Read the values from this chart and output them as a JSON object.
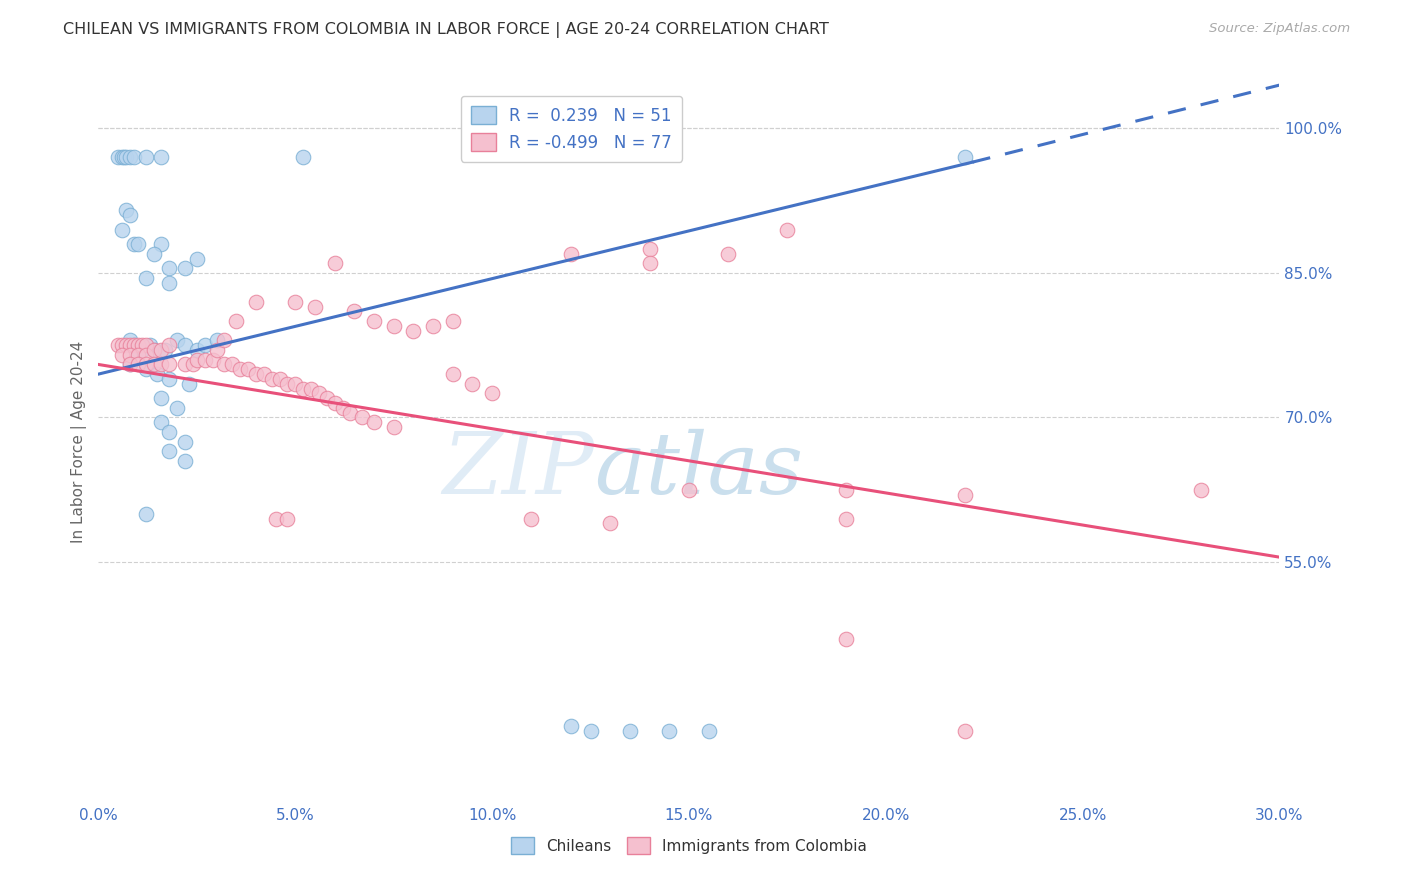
{
  "title": "CHILEAN VS IMMIGRANTS FROM COLOMBIA IN LABOR FORCE | AGE 20-24 CORRELATION CHART",
  "source": "Source: ZipAtlas.com",
  "ylabel": "In Labor Force | Age 20-24",
  "xlim": [
    0.0,
    0.3
  ],
  "ylim": [
    0.3,
    1.05
  ],
  "yticks": [
    0.55,
    0.7,
    0.85,
    1.0
  ],
  "xticks": [
    0.0,
    0.05,
    0.1,
    0.15,
    0.2,
    0.25,
    0.3
  ],
  "blue_R": 0.239,
  "blue_N": 51,
  "pink_R": -0.499,
  "pink_N": 77,
  "blue_label": "Chileans",
  "pink_label": "Immigrants from Colombia",
  "background_color": "#ffffff",
  "watermark_zip": "ZIP",
  "watermark_atlas": "atlas",
  "blue_line_solid": [
    [
      0.0,
      0.745
    ],
    [
      0.222,
      0.965
    ]
  ],
  "blue_line_dashed": [
    [
      0.222,
      0.965
    ],
    [
      0.3,
      1.045
    ]
  ],
  "pink_line": [
    [
      0.0,
      0.755
    ],
    [
      0.3,
      0.555
    ]
  ],
  "blue_points": [
    [
      0.005,
      0.97
    ],
    [
      0.006,
      0.97
    ],
    [
      0.0065,
      0.97
    ],
    [
      0.007,
      0.97
    ],
    [
      0.008,
      0.97
    ],
    [
      0.009,
      0.97
    ],
    [
      0.012,
      0.97
    ],
    [
      0.016,
      0.97
    ],
    [
      0.052,
      0.97
    ],
    [
      0.007,
      0.915
    ],
    [
      0.008,
      0.91
    ],
    [
      0.006,
      0.895
    ],
    [
      0.009,
      0.88
    ],
    [
      0.01,
      0.88
    ],
    [
      0.016,
      0.88
    ],
    [
      0.014,
      0.87
    ],
    [
      0.018,
      0.855
    ],
    [
      0.012,
      0.845
    ],
    [
      0.018,
      0.84
    ],
    [
      0.022,
      0.855
    ],
    [
      0.025,
      0.865
    ],
    [
      0.008,
      0.78
    ],
    [
      0.009,
      0.775
    ],
    [
      0.01,
      0.77
    ],
    [
      0.011,
      0.77
    ],
    [
      0.013,
      0.775
    ],
    [
      0.014,
      0.77
    ],
    [
      0.017,
      0.77
    ],
    [
      0.02,
      0.78
    ],
    [
      0.022,
      0.775
    ],
    [
      0.025,
      0.77
    ],
    [
      0.027,
      0.775
    ],
    [
      0.03,
      0.78
    ],
    [
      0.008,
      0.755
    ],
    [
      0.012,
      0.75
    ],
    [
      0.015,
      0.745
    ],
    [
      0.018,
      0.74
    ],
    [
      0.023,
      0.735
    ],
    [
      0.016,
      0.72
    ],
    [
      0.02,
      0.71
    ],
    [
      0.016,
      0.695
    ],
    [
      0.018,
      0.685
    ],
    [
      0.022,
      0.675
    ],
    [
      0.018,
      0.665
    ],
    [
      0.022,
      0.655
    ],
    [
      0.012,
      0.6
    ],
    [
      0.22,
      0.97
    ],
    [
      0.12,
      0.38
    ],
    [
      0.155,
      0.375
    ],
    [
      0.125,
      0.375
    ],
    [
      0.135,
      0.375
    ],
    [
      0.145,
      0.375
    ]
  ],
  "pink_points": [
    [
      0.005,
      0.775
    ],
    [
      0.006,
      0.775
    ],
    [
      0.007,
      0.775
    ],
    [
      0.008,
      0.775
    ],
    [
      0.009,
      0.775
    ],
    [
      0.01,
      0.775
    ],
    [
      0.011,
      0.775
    ],
    [
      0.012,
      0.775
    ],
    [
      0.006,
      0.765
    ],
    [
      0.008,
      0.765
    ],
    [
      0.01,
      0.765
    ],
    [
      0.012,
      0.765
    ],
    [
      0.014,
      0.77
    ],
    [
      0.016,
      0.77
    ],
    [
      0.018,
      0.775
    ],
    [
      0.008,
      0.755
    ],
    [
      0.01,
      0.755
    ],
    [
      0.012,
      0.755
    ],
    [
      0.014,
      0.755
    ],
    [
      0.016,
      0.755
    ],
    [
      0.018,
      0.755
    ],
    [
      0.022,
      0.755
    ],
    [
      0.024,
      0.755
    ],
    [
      0.025,
      0.76
    ],
    [
      0.027,
      0.76
    ],
    [
      0.029,
      0.76
    ],
    [
      0.032,
      0.755
    ],
    [
      0.034,
      0.755
    ],
    [
      0.036,
      0.75
    ],
    [
      0.038,
      0.75
    ],
    [
      0.04,
      0.745
    ],
    [
      0.042,
      0.745
    ],
    [
      0.044,
      0.74
    ],
    [
      0.046,
      0.74
    ],
    [
      0.048,
      0.735
    ],
    [
      0.05,
      0.735
    ],
    [
      0.052,
      0.73
    ],
    [
      0.054,
      0.73
    ],
    [
      0.056,
      0.725
    ],
    [
      0.058,
      0.72
    ],
    [
      0.06,
      0.715
    ],
    [
      0.062,
      0.71
    ],
    [
      0.064,
      0.705
    ],
    [
      0.067,
      0.7
    ],
    [
      0.07,
      0.695
    ],
    [
      0.075,
      0.69
    ],
    [
      0.03,
      0.77
    ],
    [
      0.032,
      0.78
    ],
    [
      0.05,
      0.82
    ],
    [
      0.055,
      0.815
    ],
    [
      0.065,
      0.81
    ],
    [
      0.07,
      0.8
    ],
    [
      0.075,
      0.795
    ],
    [
      0.08,
      0.79
    ],
    [
      0.085,
      0.795
    ],
    [
      0.09,
      0.8
    ],
    [
      0.12,
      0.87
    ],
    [
      0.06,
      0.86
    ],
    [
      0.04,
      0.82
    ],
    [
      0.035,
      0.8
    ],
    [
      0.14,
      0.875
    ],
    [
      0.16,
      0.87
    ],
    [
      0.14,
      0.86
    ],
    [
      0.09,
      0.745
    ],
    [
      0.095,
      0.735
    ],
    [
      0.1,
      0.725
    ],
    [
      0.11,
      0.595
    ],
    [
      0.13,
      0.59
    ],
    [
      0.045,
      0.595
    ],
    [
      0.048,
      0.595
    ],
    [
      0.15,
      0.625
    ],
    [
      0.19,
      0.625
    ],
    [
      0.19,
      0.595
    ],
    [
      0.22,
      0.62
    ],
    [
      0.175,
      0.895
    ],
    [
      0.19,
      0.47
    ],
    [
      0.28,
      0.625
    ],
    [
      0.22,
      0.375
    ]
  ]
}
